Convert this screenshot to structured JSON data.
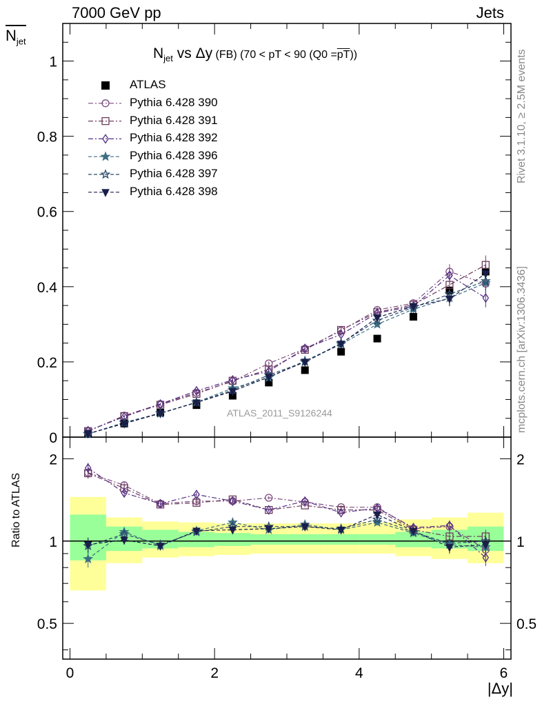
{
  "header": {
    "left": "7000 GeV pp",
    "right": "Jets"
  },
  "y_label": {
    "main": "N",
    "sub": "jet"
  },
  "x_label": "|Δy|",
  "ratio_label": "Ratio to ATLAS",
  "side_notes": {
    "rivet": "Rivet 3.1.10, ≥ 2.5M events",
    "mcplots": "mcplots.cern.ch [arXiv:1306.3436]"
  },
  "analysis_tag": "ATLAS_2011_S9126244",
  "title": {
    "main_pre": "N",
    "main_sub": "jet",
    "main_post": " vs Δy",
    "small_1": " (FB) (70 < pT <  90 (Q0 =",
    "small_over": "pT",
    "small_2": "))"
  },
  "colors": {
    "p390": "#7b4a7e",
    "p391": "#6b3b5c",
    "p392": "#522d84",
    "p396": "#3d6e82",
    "p397": "#2a4a6a",
    "p398": "#1a1f4a",
    "band_stat": "#99ff99",
    "band_total": "#ffff99"
  },
  "chart_data": {
    "type": "scatter",
    "x": [
      0.25,
      0.75,
      1.25,
      1.75,
      2.25,
      2.75,
      3.25,
      3.75,
      4.25,
      4.75,
      5.25,
      5.75
    ],
    "x_bin_edges": [
      0,
      0.5,
      1.0,
      1.5,
      2.0,
      2.5,
      3.0,
      3.5,
      4.0,
      4.5,
      5.0,
      5.5,
      6.0
    ],
    "xlim": [
      -0.1,
      6.1
    ],
    "main_ylim": [
      0,
      1.1
    ],
    "main_yticks": [
      0,
      0.2,
      0.4,
      0.6,
      0.8,
      1
    ],
    "main_ytick_labels": [
      "0",
      "0.2",
      "0.4",
      "0.6",
      "0.8",
      "1"
    ],
    "ratio_ylim": [
      0.37,
      2.4
    ],
    "ratio_yticks": [
      0.5,
      1,
      2
    ],
    "ratio_ytick_labels": [
      "0.5",
      "1",
      "2"
    ],
    "xticks": [
      0,
      2,
      4,
      6
    ],
    "xtick_labels": [
      "0",
      "2",
      "4",
      "6"
    ],
    "series": [
      {
        "name": "ATLAS",
        "marker": "square-filled",
        "style": "none",
        "values": [
          0.009,
          0.036,
          0.065,
          0.085,
          0.11,
          0.145,
          0.178,
          0.227,
          0.262,
          0.32,
          0.39,
          0.44
        ]
      },
      {
        "name": "Pythia 6.428 390",
        "marker": "circle-open",
        "style": "dashdot",
        "color_key": "p390",
        "values": [
          0.016,
          0.057,
          0.088,
          0.118,
          0.148,
          0.196,
          0.235,
          0.283,
          0.338,
          0.356,
          0.44,
          0.408
        ],
        "errors": [
          0.002,
          0.003,
          0.003,
          0.004,
          0.005,
          0.005,
          0.006,
          0.006,
          0.008,
          0.01,
          0.02,
          0.025
        ]
      },
      {
        "name": "Pythia 6.428 391",
        "marker": "square-open",
        "style": "dashdot",
        "color_key": "p391",
        "values": [
          0.016,
          0.056,
          0.086,
          0.115,
          0.15,
          0.18,
          0.232,
          0.285,
          0.332,
          0.352,
          0.405,
          0.458
        ],
        "errors": [
          0.002,
          0.003,
          0.003,
          0.004,
          0.005,
          0.005,
          0.006,
          0.006,
          0.008,
          0.01,
          0.02,
          0.025
        ]
      },
      {
        "name": "Pythia 6.428 392",
        "marker": "diamond-open",
        "style": "dashdot",
        "color_key": "p392",
        "values": [
          0.017,
          0.054,
          0.088,
          0.123,
          0.152,
          0.175,
          0.236,
          0.273,
          0.33,
          0.348,
          0.43,
          0.37
        ],
        "errors": [
          0.002,
          0.003,
          0.003,
          0.004,
          0.005,
          0.005,
          0.006,
          0.006,
          0.008,
          0.01,
          0.02,
          0.025
        ]
      },
      {
        "name": "Pythia 6.428 396",
        "marker": "star-filled",
        "style": "dashed",
        "color_key": "p396",
        "values": [
          0.008,
          0.039,
          0.063,
          0.093,
          0.13,
          0.158,
          0.203,
          0.247,
          0.3,
          0.34,
          0.37,
          0.41
        ],
        "errors": [
          0.002,
          0.003,
          0.003,
          0.004,
          0.005,
          0.005,
          0.006,
          0.006,
          0.008,
          0.01,
          0.02,
          0.025
        ]
      },
      {
        "name": "Pythia 6.428 397",
        "marker": "star-open",
        "style": "dashed",
        "color_key": "p397",
        "values": [
          0.009,
          0.038,
          0.064,
          0.092,
          0.125,
          0.165,
          0.2,
          0.25,
          0.31,
          0.345,
          0.38,
          0.415
        ],
        "errors": [
          0.002,
          0.003,
          0.003,
          0.004,
          0.005,
          0.005,
          0.006,
          0.006,
          0.008,
          0.01,
          0.02,
          0.025
        ]
      },
      {
        "name": "Pythia 6.428 398",
        "marker": "triangle-down-filled",
        "style": "dashed",
        "color_key": "p398",
        "values": [
          0.009,
          0.036,
          0.063,
          0.092,
          0.122,
          0.16,
          0.2,
          0.248,
          0.318,
          0.348,
          0.368,
          0.435
        ],
        "errors": [
          0.002,
          0.003,
          0.003,
          0.004,
          0.005,
          0.005,
          0.006,
          0.006,
          0.008,
          0.01,
          0.02,
          0.025
        ]
      }
    ],
    "ratio_series": [
      {
        "name": "Pythia 6.428 390",
        "values": [
          1.78,
          1.6,
          1.37,
          1.4,
          1.4,
          1.44,
          1.39,
          1.33,
          1.33,
          1.11,
          1.13,
          0.93
        ],
        "errors": [
          0.08,
          0.04,
          0.03,
          0.03,
          0.03,
          0.02,
          0.02,
          0.02,
          0.03,
          0.03,
          0.05,
          0.06
        ]
      },
      {
        "name": "Pythia 6.428 391",
        "values": [
          1.77,
          1.56,
          1.36,
          1.38,
          1.42,
          1.3,
          1.35,
          1.3,
          1.3,
          1.1,
          1.04,
          1.04
        ],
        "errors": [
          0.08,
          0.04,
          0.03,
          0.03,
          0.03,
          0.02,
          0.02,
          0.02,
          0.03,
          0.03,
          0.05,
          0.06
        ]
      },
      {
        "name": "Pythia 6.428 392",
        "values": [
          1.85,
          1.5,
          1.37,
          1.48,
          1.4,
          1.3,
          1.4,
          1.27,
          1.32,
          1.12,
          1.14,
          0.87
        ],
        "errors": [
          0.08,
          0.04,
          0.03,
          0.03,
          0.03,
          0.02,
          0.02,
          0.02,
          0.03,
          0.03,
          0.05,
          0.06
        ]
      },
      {
        "name": "Pythia 6.428 396",
        "values": [
          0.86,
          1.08,
          0.96,
          1.09,
          1.17,
          1.1,
          1.15,
          1.1,
          1.17,
          1.07,
          0.97,
          0.95
        ],
        "errors": [
          0.06,
          0.04,
          0.03,
          0.03,
          0.03,
          0.02,
          0.02,
          0.02,
          0.03,
          0.03,
          0.05,
          0.06
        ]
      },
      {
        "name": "Pythia 6.428 397",
        "values": [
          0.96,
          1.06,
          0.97,
          1.08,
          1.13,
          1.13,
          1.13,
          1.11,
          1.2,
          1.08,
          0.98,
          1.0
        ],
        "errors": [
          0.06,
          0.04,
          0.03,
          0.03,
          0.03,
          0.02,
          0.02,
          0.02,
          0.03,
          0.03,
          0.05,
          0.06
        ]
      },
      {
        "name": "Pythia 6.428 398",
        "values": [
          0.97,
          1.01,
          0.96,
          1.09,
          1.1,
          1.11,
          1.13,
          1.1,
          1.25,
          1.09,
          0.95,
          0.97
        ],
        "errors": [
          0.06,
          0.04,
          0.03,
          0.03,
          0.03,
          0.02,
          0.02,
          0.02,
          0.03,
          0.03,
          0.05,
          0.06
        ]
      }
    ],
    "ratio_band_stat": [
      [
        0.85,
        1.25
      ],
      [
        0.92,
        1.13
      ],
      [
        0.94,
        1.1
      ],
      [
        0.95,
        1.08
      ],
      [
        0.96,
        1.07
      ],
      [
        0.97,
        1.06
      ],
      [
        0.97,
        1.06
      ],
      [
        0.97,
        1.06
      ],
      [
        0.97,
        1.06
      ],
      [
        0.95,
        1.08
      ],
      [
        0.94,
        1.1
      ],
      [
        0.92,
        1.13
      ]
    ],
    "ratio_band_total": [
      [
        0.66,
        1.45
      ],
      [
        0.83,
        1.22
      ],
      [
        0.87,
        1.18
      ],
      [
        0.88,
        1.17
      ],
      [
        0.89,
        1.16
      ],
      [
        0.9,
        1.16
      ],
      [
        0.9,
        1.16
      ],
      [
        0.9,
        1.16
      ],
      [
        0.9,
        1.17
      ],
      [
        0.88,
        1.2
      ],
      [
        0.86,
        1.22
      ],
      [
        0.83,
        1.27
      ]
    ]
  }
}
